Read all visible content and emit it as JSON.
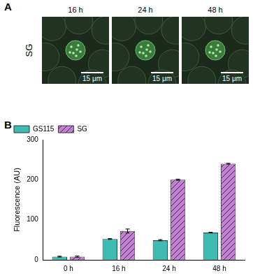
{
  "figure": {
    "panel_a": {
      "label": "A",
      "row_label": "SG",
      "images": [
        {
          "caption": "16 h",
          "scale_bar": "15 μm"
        },
        {
          "caption": "24 h",
          "scale_bar": "15 μm"
        },
        {
          "caption": "48 h",
          "scale_bar": "15 μm"
        }
      ]
    },
    "panel_b_label": "B"
  },
  "chart_data": {
    "type": "bar",
    "categories": [
      "0 h",
      "16 h",
      "24 h",
      "48 h"
    ],
    "y_label": "Fluorescence (AU)",
    "series": [
      {
        "name": "GS115",
        "color": "#3fbcb2",
        "values": [
          8,
          52,
          49,
          68
        ],
        "errors": [
          1,
          1,
          1.5,
          1
        ]
      },
      {
        "name": "SG",
        "color": "#c57fd6",
        "values": [
          8,
          72,
          200,
          240
        ],
        "errors": [
          1.5,
          5,
          1.5,
          1
        ]
      }
    ],
    "ylim": [
      0,
      300
    ],
    "yticks": [
      0,
      100,
      200,
      300
    ],
    "grid": false,
    "legend": "top-left"
  }
}
